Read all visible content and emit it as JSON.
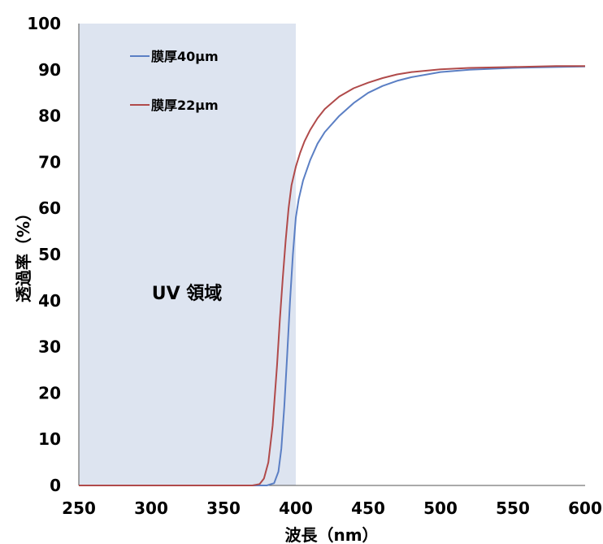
{
  "chart_data": {
    "type": "line",
    "xlabel": "波長（nm）",
    "ylabel": "透過率（%）",
    "xlim": [
      250,
      600
    ],
    "ylim": [
      0,
      100
    ],
    "xticks": [
      250,
      300,
      350,
      400,
      450,
      500,
      550,
      600
    ],
    "yticks": [
      0,
      10,
      20,
      30,
      40,
      50,
      60,
      70,
      80,
      90,
      100
    ],
    "grid": false,
    "legend_position": "top-left",
    "shaded_region": {
      "label": "UV 領域",
      "x_range": [
        250,
        400
      ],
      "color": "#dde4f0"
    },
    "series": [
      {
        "name": "膜厚40μm",
        "color": "#5b7fc4",
        "x": [
          250,
          370,
          380,
          385,
          388,
          390,
          392,
          394,
          396,
          398,
          400,
          402,
          405,
          410,
          415,
          420,
          430,
          440,
          450,
          460,
          470,
          480,
          500,
          520,
          550,
          580,
          600
        ],
        "y": [
          0,
          0,
          0,
          0.5,
          3,
          8,
          17,
          28,
          40,
          50,
          58,
          62,
          66,
          70.5,
          74,
          76.5,
          80,
          82.8,
          85,
          86.5,
          87.6,
          88.4,
          89.5,
          90,
          90.4,
          90.6,
          90.7
        ]
      },
      {
        "name": "膜厚22μm",
        "color": "#b04a4a",
        "x": [
          250,
          370,
          375,
          378,
          381,
          384,
          387,
          389,
          391,
          393,
          395,
          397,
          400,
          403,
          406,
          410,
          415,
          420,
          430,
          440,
          450,
          460,
          470,
          480,
          500,
          520,
          550,
          580,
          600
        ],
        "y": [
          0,
          0,
          0.3,
          1.5,
          5,
          13,
          26,
          36,
          45,
          53,
          60,
          65,
          69,
          72,
          74.5,
          77,
          79.5,
          81.5,
          84.2,
          86,
          87.2,
          88.2,
          89,
          89.5,
          90.1,
          90.4,
          90.6,
          90.8,
          90.8
        ]
      }
    ]
  }
}
